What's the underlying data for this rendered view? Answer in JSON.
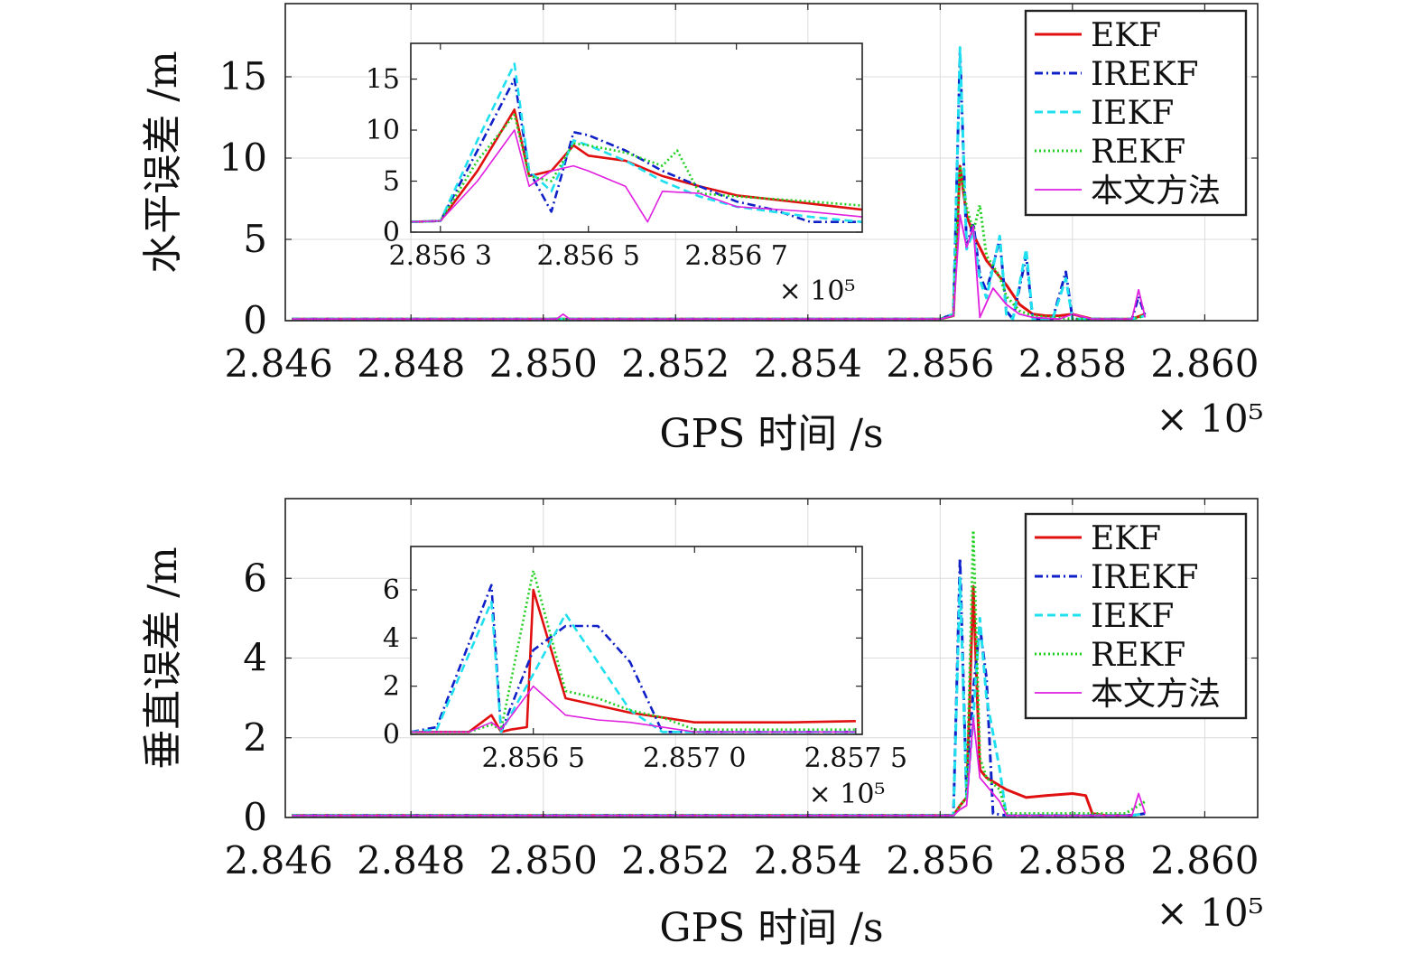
{
  "legend_names": [
    "EKF",
    "IREKF",
    "IEKF",
    "REKF",
    "本文方法"
  ],
  "colors": {
    "EKF": "#e01010",
    "IREKF": "#1020c8",
    "IEKF": "#20e0f0",
    "REKF": "#20d020",
    "ours": "#e020e0"
  },
  "chart_data": [
    {
      "type": "line",
      "panel": "top-main",
      "xlabel": "GPS 时间 /s",
      "ylabel": "水平误差 /m",
      "x_multiplier": "× 10⁵",
      "xlim": [
        2.8461,
        2.8608
      ],
      "ylim": [
        0,
        19.5
      ],
      "xticks": [
        "2.846",
        "2.848",
        "2.850",
        "2.852",
        "2.854",
        "2.856",
        "2.858",
        "2.860"
      ],
      "xtick_values": [
        2.846,
        2.848,
        2.85,
        2.852,
        2.854,
        2.856,
        2.858,
        2.86
      ],
      "yticks": [
        "0",
        "5",
        "10",
        "15"
      ],
      "ytick_values": [
        0,
        5,
        10,
        15
      ],
      "grid": true,
      "legend_position": "top-right",
      "series": [
        {
          "name": "EKF",
          "style": "solid",
          "x": [
            2.8462,
            2.856,
            2.8562,
            2.8563,
            2.8564,
            2.8565,
            2.8567,
            2.857,
            2.8572,
            2.8574,
            2.8576,
            2.8578,
            2.858,
            2.8582,
            2.8583,
            2.8585,
            2.8589,
            2.8591
          ],
          "y": [
            0.1,
            0.1,
            0.3,
            9.5,
            6.5,
            5.3,
            3.7,
            2.2,
            1.0,
            0.4,
            0.3,
            0.3,
            0.4,
            0.2,
            0.1,
            0.1,
            0.1,
            0.4
          ]
        },
        {
          "name": "IREKF",
          "style": "dashdot",
          "x": [
            2.8462,
            2.856,
            2.8562,
            2.8563,
            2.8564,
            2.8565,
            2.8566,
            2.8567,
            2.8569,
            2.857,
            2.8571,
            2.8573,
            2.8574,
            2.8577,
            2.8579,
            2.858,
            2.8583,
            2.8589,
            2.859,
            2.8591
          ],
          "y": [
            0.1,
            0.1,
            0.4,
            16.5,
            4.6,
            6.0,
            2.8,
            1.8,
            5.0,
            0.6,
            0.1,
            4.0,
            0.1,
            0.1,
            3.0,
            0.1,
            0.1,
            0.1,
            1.5,
            0.3
          ]
        },
        {
          "name": "IEKF",
          "style": "dashed",
          "x": [
            2.8462,
            2.856,
            2.8562,
            2.8563,
            2.8564,
            2.8565,
            2.8566,
            2.8567,
            2.8569,
            2.857,
            2.8571,
            2.8573,
            2.8574,
            2.8577,
            2.8579,
            2.858,
            2.8583,
            2.8589,
            2.8591
          ],
          "y": [
            0.1,
            0.1,
            0.4,
            16.8,
            4.4,
            5.5,
            2.5,
            1.4,
            5.2,
            0.4,
            0.1,
            4.4,
            0.1,
            0.1,
            2.6,
            0.1,
            0.1,
            0.1,
            0.3
          ]
        },
        {
          "name": "REKF",
          "style": "dotted",
          "x": [
            2.8462,
            2.856,
            2.8562,
            2.8563,
            2.8564,
            2.8565,
            2.8566,
            2.8567,
            2.8569,
            2.857,
            2.8572,
            2.8574,
            2.8577,
            2.858,
            2.8583,
            2.8589,
            2.8591
          ],
          "y": [
            0.1,
            0.1,
            0.3,
            9.5,
            7.0,
            5.5,
            7.1,
            4.0,
            2.7,
            1.5,
            0.6,
            0.3,
            0.2,
            0.1,
            0.1,
            0.1,
            0.3
          ]
        },
        {
          "name": "本文方法",
          "style": "solid-thin",
          "x": [
            2.8462,
            2.8502,
            2.8503,
            2.8504,
            2.856,
            2.8562,
            2.8563,
            2.8564,
            2.8565,
            2.8566,
            2.8568,
            2.857,
            2.8572,
            2.8574,
            2.8578,
            2.858,
            2.8583,
            2.8589,
            2.859,
            2.8591
          ],
          "y": [
            0.1,
            0.1,
            0.4,
            0.1,
            0.1,
            0.3,
            6.5,
            4.5,
            5.8,
            0.2,
            2.0,
            1.0,
            0.4,
            0.2,
            0.1,
            0.4,
            0.1,
            0.1,
            1.9,
            0.2
          ]
        }
      ]
    },
    {
      "type": "line",
      "panel": "top-inset",
      "x_multiplier": "× 10⁵",
      "xlim": [
        2.85626,
        2.85687
      ],
      "ylim": [
        0,
        18.5
      ],
      "xticks": [
        "2.856 3",
        "2.856 5",
        "2.856 7"
      ],
      "xtick_values": [
        2.8563,
        2.8565,
        2.8567
      ],
      "yticks": [
        "0",
        "5",
        "10",
        "15"
      ],
      "ytick_values": [
        0,
        5,
        10,
        15
      ],
      "series": [
        {
          "name": "EKF",
          "style": "solid",
          "x": [
            2.85626,
            2.8563,
            2.85635,
            2.8564,
            2.85642,
            2.85645,
            2.85648,
            2.8565,
            2.85655,
            2.8566,
            2.85665,
            2.8567,
            2.8568,
            2.85687
          ],
          "y": [
            1.0,
            1.1,
            6.0,
            12.0,
            5.5,
            6.0,
            8.5,
            7.5,
            7.0,
            5.5,
            4.5,
            3.6,
            2.8,
            2.2
          ]
        },
        {
          "name": "IREKF",
          "style": "dashdot",
          "x": [
            2.85626,
            2.8563,
            2.85635,
            2.8564,
            2.85642,
            2.85645,
            2.85648,
            2.8565,
            2.85655,
            2.8566,
            2.85665,
            2.8567,
            2.85675,
            2.8568,
            2.85687
          ],
          "y": [
            1.0,
            1.1,
            8.0,
            15.0,
            6.0,
            2.0,
            9.8,
            9.5,
            8.0,
            6.0,
            4.5,
            3.0,
            2.2,
            1.0,
            1.0
          ]
        },
        {
          "name": "IEKF",
          "style": "dashed",
          "x": [
            2.85626,
            2.8563,
            2.85635,
            2.8564,
            2.85642,
            2.85645,
            2.85648,
            2.8565,
            2.85655,
            2.8566,
            2.85665,
            2.8567,
            2.8568,
            2.85687
          ],
          "y": [
            1.0,
            1.1,
            9.0,
            16.5,
            6.0,
            4.0,
            9.0,
            8.5,
            7.0,
            5.0,
            3.5,
            2.5,
            1.5,
            1.0
          ]
        },
        {
          "name": "REKF",
          "style": "dotted",
          "x": [
            2.85626,
            2.8563,
            2.85635,
            2.8564,
            2.85642,
            2.85645,
            2.85648,
            2.8565,
            2.85655,
            2.8566,
            2.85662,
            2.85665,
            2.8567,
            2.8568,
            2.85687
          ],
          "y": [
            1.0,
            1.1,
            7.0,
            11.5,
            5.5,
            5.0,
            8.7,
            8.5,
            7.8,
            6.5,
            8.0,
            3.8,
            3.5,
            3.0,
            2.6
          ]
        },
        {
          "name": "本文方法",
          "style": "solid-thin",
          "x": [
            2.85626,
            2.8563,
            2.85635,
            2.8564,
            2.85642,
            2.85645,
            2.85648,
            2.8565,
            2.85655,
            2.85658,
            2.8566,
            2.85665,
            2.8567,
            2.8568,
            2.85687
          ],
          "y": [
            1.0,
            1.1,
            5.0,
            10.0,
            4.5,
            6.0,
            6.5,
            6.0,
            4.5,
            1.0,
            4.0,
            3.8,
            2.5,
            2.0,
            1.5
          ]
        }
      ]
    },
    {
      "type": "line",
      "panel": "bottom-main",
      "xlabel": "GPS 时间 /s",
      "ylabel": "垂直误差 /m",
      "x_multiplier": "× 10⁵",
      "xlim": [
        2.8461,
        2.8608
      ],
      "ylim": [
        0,
        8
      ],
      "xticks": [
        "2.846",
        "2.848",
        "2.850",
        "2.852",
        "2.854",
        "2.856",
        "2.858",
        "2.860"
      ],
      "xtick_values": [
        2.846,
        2.848,
        2.85,
        2.852,
        2.854,
        2.856,
        2.858,
        2.86
      ],
      "yticks": [
        "0",
        "2",
        "4",
        "6"
      ],
      "ytick_values": [
        0,
        2,
        4,
        6
      ],
      "grid": true,
      "legend_position": "top-right",
      "series": [
        {
          "name": "EKF",
          "style": "solid",
          "x": [
            2.8462,
            2.8562,
            2.8563,
            2.8564,
            2.8565,
            2.8566,
            2.8567,
            2.857,
            2.8573,
            2.8576,
            2.858,
            2.8582,
            2.8583,
            2.8585,
            2.8589,
            2.8591
          ],
          "y": [
            0.05,
            0.05,
            0.3,
            0.5,
            5.8,
            1.2,
            1.0,
            0.7,
            0.5,
            0.55,
            0.6,
            0.55,
            0.1,
            0.05,
            0.05,
            0.1
          ]
        },
        {
          "name": "IREKF",
          "style": "dashdot",
          "x": [
            2.8462,
            2.8562,
            2.8563,
            2.8564,
            2.8565,
            2.8566,
            2.8567,
            2.8568,
            2.857,
            2.8589,
            2.8591
          ],
          "y": [
            0.05,
            0.05,
            6.5,
            0.5,
            3.2,
            4.8,
            3.5,
            0.1,
            0.05,
            0.05,
            0.1
          ]
        },
        {
          "name": "IEKF",
          "style": "dashed",
          "x": [
            2.8462,
            2.8562,
            2.8563,
            2.8564,
            2.8565,
            2.8566,
            2.8567,
            2.8569,
            2.857,
            2.8589,
            2.8591
          ],
          "y": [
            0.05,
            0.05,
            6.0,
            0.4,
            2.5,
            5.0,
            3.0,
            1.2,
            0.05,
            0.05,
            0.1
          ]
        },
        {
          "name": "REKF",
          "style": "dotted",
          "x": [
            2.8462,
            2.8562,
            2.8563,
            2.8564,
            2.8565,
            2.8566,
            2.8567,
            2.8569,
            2.857,
            2.8588,
            2.8591
          ],
          "y": [
            0.05,
            0.05,
            0.3,
            0.5,
            7.2,
            1.5,
            1.0,
            0.7,
            0.1,
            0.1,
            0.4
          ]
        },
        {
          "name": "本文方法",
          "style": "solid-thin",
          "x": [
            2.8462,
            2.8562,
            2.8563,
            2.8564,
            2.8565,
            2.8566,
            2.8567,
            2.8569,
            2.857,
            2.8589,
            2.859,
            2.8591
          ],
          "y": [
            0.05,
            0.05,
            0.2,
            0.3,
            2.5,
            1.0,
            0.8,
            0.4,
            0.05,
            0.05,
            0.6,
            0.1
          ]
        }
      ]
    },
    {
      "type": "line",
      "panel": "bottom-inset",
      "x_multiplier": "× 10⁵",
      "xlim": [
        2.85612,
        2.85752
      ],
      "ylim": [
        0,
        7.8
      ],
      "xticks": [
        "2.856 5",
        "2.857 0",
        "2.857 5"
      ],
      "xtick_values": [
        2.8565,
        2.857,
        2.8575
      ],
      "yticks": [
        "0",
        "2",
        "4",
        "6"
      ],
      "ytick_values": [
        0,
        2,
        4,
        6
      ],
      "series": [
        {
          "name": "EKF",
          "style": "solid",
          "x": [
            2.85612,
            2.8563,
            2.85637,
            2.8564,
            2.85643,
            2.85648,
            2.8565,
            2.8566,
            2.8567,
            2.8568,
            2.8569,
            2.857,
            2.8573,
            2.8575
          ],
          "y": [
            0.1,
            0.1,
            0.8,
            0.1,
            0.2,
            0.3,
            6.0,
            1.5,
            1.2,
            0.9,
            0.7,
            0.5,
            0.5,
            0.55
          ]
        },
        {
          "name": "IREKF",
          "style": "dashdot",
          "x": [
            2.85612,
            2.8562,
            2.85637,
            2.8564,
            2.8565,
            2.8566,
            2.8567,
            2.8568,
            2.8569,
            2.857,
            2.85715,
            2.8575
          ],
          "y": [
            0.1,
            0.3,
            6.2,
            0.1,
            3.5,
            4.5,
            4.5,
            3.0,
            0.1,
            0.1,
            0.1,
            0.1
          ]
        },
        {
          "name": "IEKF",
          "style": "dashed",
          "x": [
            2.85612,
            2.8562,
            2.85637,
            2.8564,
            2.8565,
            2.8566,
            2.8567,
            2.8568,
            2.8569,
            2.857,
            2.85715,
            2.8575
          ],
          "y": [
            0.1,
            0.2,
            5.5,
            0.1,
            2.5,
            5.0,
            3.0,
            1.0,
            0.1,
            0.1,
            0.1,
            0.1
          ]
        },
        {
          "name": "REKF",
          "style": "dotted",
          "x": [
            2.85612,
            2.8563,
            2.85637,
            2.8564,
            2.8565,
            2.8566,
            2.8567,
            2.8568,
            2.8569,
            2.857,
            2.8575
          ],
          "y": [
            0.1,
            0.1,
            0.4,
            0.2,
            6.8,
            1.8,
            1.5,
            1.0,
            0.7,
            0.2,
            0.2
          ]
        },
        {
          "name": "本文方法",
          "style": "solid-thin",
          "x": [
            2.85612,
            2.8563,
            2.85637,
            2.8564,
            2.8565,
            2.8566,
            2.8567,
            2.8568,
            2.857,
            2.8575
          ],
          "y": [
            0.1,
            0.1,
            0.5,
            0.2,
            2.0,
            0.8,
            0.6,
            0.5,
            0.1,
            0.1
          ]
        }
      ]
    }
  ]
}
